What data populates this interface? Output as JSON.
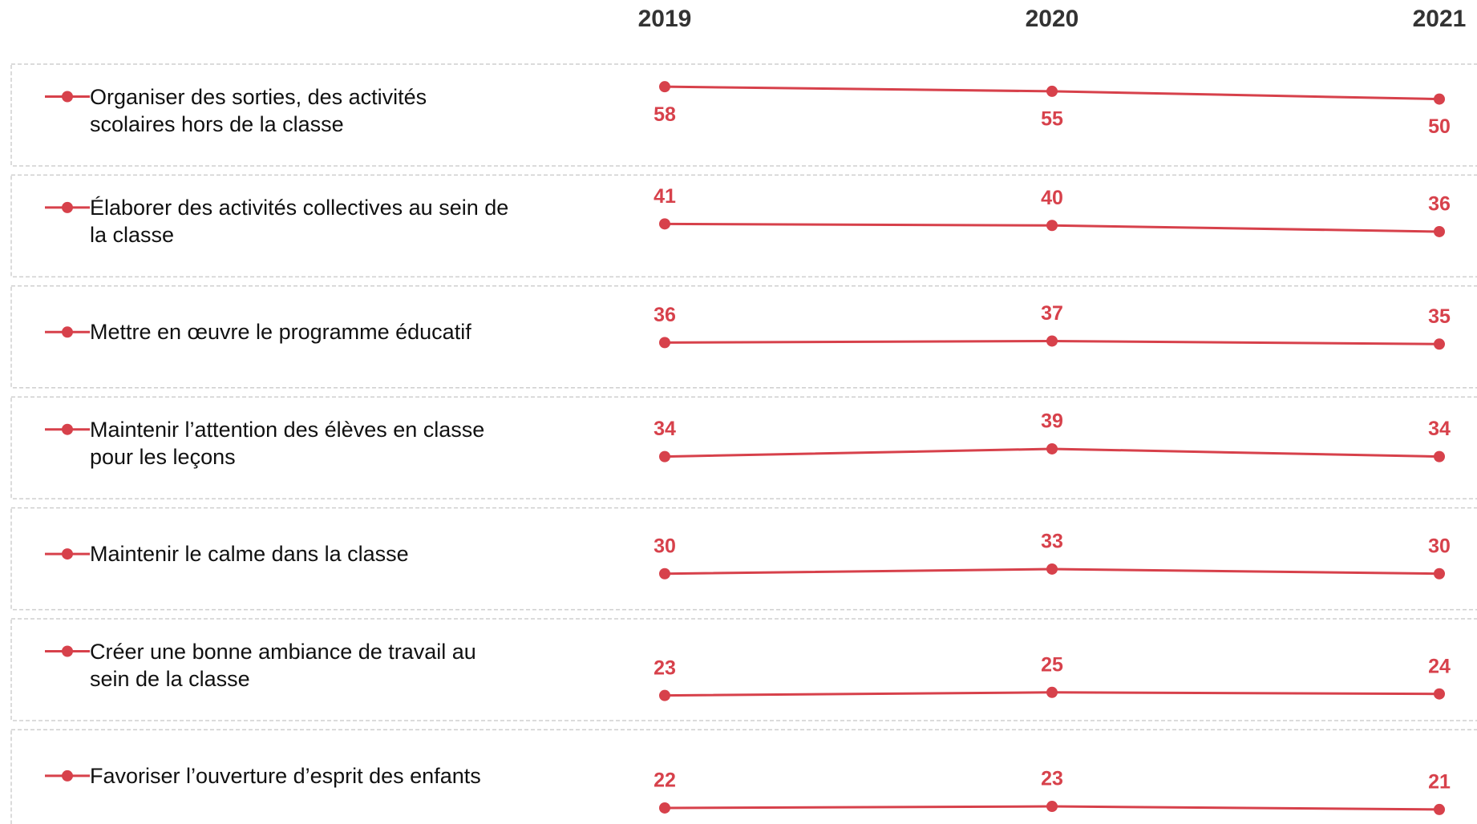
{
  "chart_data": {
    "type": "line",
    "categories": [
      "2019",
      "2020",
      "2021"
    ],
    "color": "#d7414b",
    "ylim": [
      0,
      70
    ],
    "series": [
      {
        "name": "Organiser des sorties, des activités scolaires hors de la classe",
        "values": [
          58,
          55,
          50
        ]
      },
      {
        "name": "Élaborer des activités collectives au sein de la classe",
        "values": [
          41,
          40,
          36
        ]
      },
      {
        "name": "Mettre en œuvre le programme éducatif",
        "values": [
          36,
          37,
          35
        ]
      },
      {
        "name": "Maintenir l’attention des élèves en classe pour les leçons",
        "values": [
          34,
          39,
          34
        ]
      },
      {
        "name": "Maintenir le calme dans la classe",
        "values": [
          30,
          33,
          30
        ]
      },
      {
        "name": "Créer une bonne ambiance de travail au sein de la classe",
        "values": [
          23,
          25,
          24
        ]
      },
      {
        "name": "Favoriser l’ouverture d’esprit des enfants",
        "values": [
          22,
          23,
          21
        ]
      }
    ]
  }
}
